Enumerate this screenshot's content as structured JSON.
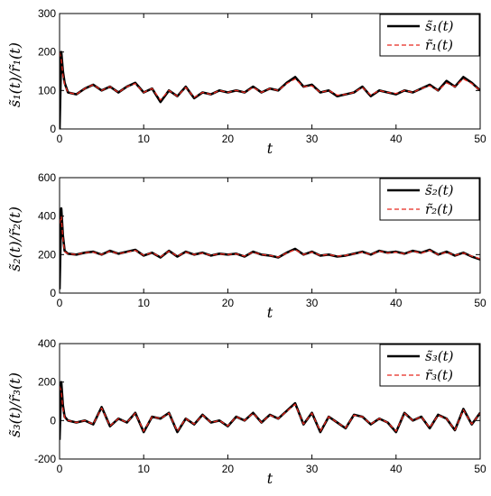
{
  "chart_data": [
    {
      "type": "line",
      "xlabel": "t",
      "ylabel": "s̃₁(t)/r̃₁(t)",
      "xlim": [
        0,
        50
      ],
      "ylim": [
        0,
        300
      ],
      "xticks": [
        "0",
        "10",
        "20",
        "30",
        "40",
        "50"
      ],
      "yticks": [
        "0",
        "100",
        "200",
        "300"
      ],
      "legend_position": "top-right",
      "grid": false,
      "series": [
        {
          "name": "s̃₁(t)",
          "color": "#000000",
          "style": "solid",
          "x": [
            0,
            0.2,
            0.4,
            0.6,
            1,
            2,
            3,
            4,
            5,
            6,
            7,
            8,
            9,
            10,
            11,
            12,
            13,
            14,
            15,
            16,
            17,
            18,
            19,
            20,
            21,
            22,
            23,
            24,
            25,
            26,
            27,
            28,
            29,
            30,
            31,
            32,
            33,
            34,
            35,
            36,
            37,
            38,
            39,
            40,
            41,
            42,
            43,
            44,
            45,
            46,
            47,
            48,
            49,
            50
          ],
          "y": [
            0,
            200,
            150,
            120,
            95,
            90,
            105,
            115,
            100,
            110,
            95,
            110,
            120,
            95,
            105,
            70,
            100,
            85,
            110,
            80,
            95,
            90,
            100,
            95,
            100,
            95,
            110,
            95,
            105,
            100,
            120,
            135,
            110,
            115,
            95,
            100,
            85,
            90,
            95,
            110,
            85,
            100,
            95,
            90,
            100,
            95,
            105,
            115,
            100,
            125,
            110,
            135,
            120,
            100
          ]
        },
        {
          "name": "r̃₁(t)",
          "color": "#e8281e",
          "style": "dashed",
          "x": [
            0,
            0.2,
            0.4,
            0.6,
            1,
            2,
            3,
            4,
            5,
            6,
            7,
            8,
            9,
            10,
            11,
            12,
            13,
            14,
            15,
            16,
            17,
            18,
            19,
            20,
            21,
            22,
            23,
            24,
            25,
            26,
            27,
            28,
            29,
            30,
            31,
            32,
            33,
            34,
            35,
            36,
            37,
            38,
            39,
            40,
            41,
            42,
            43,
            44,
            45,
            46,
            47,
            48,
            49,
            50
          ],
          "y": [
            200,
            180,
            140,
            115,
            95,
            90,
            105,
            115,
            100,
            110,
            95,
            110,
            118,
            95,
            105,
            75,
            100,
            85,
            108,
            82,
            95,
            90,
            100,
            95,
            100,
            95,
            108,
            95,
            105,
            100,
            118,
            130,
            110,
            112,
            95,
            100,
            88,
            90,
            95,
            108,
            88,
            100,
            95,
            92,
            100,
            95,
            105,
            112,
            100,
            120,
            110,
            130,
            118,
            100
          ]
        }
      ]
    },
    {
      "type": "line",
      "xlabel": "t",
      "ylabel": "s̃₂(t)/r̃₂(t)",
      "xlim": [
        0,
        50
      ],
      "ylim": [
        0,
        600
      ],
      "xticks": [
        "0",
        "10",
        "20",
        "30",
        "40",
        "50"
      ],
      "yticks": [
        "0",
        "200",
        "400",
        "600"
      ],
      "legend_position": "top-right",
      "grid": false,
      "series": [
        {
          "name": "s̃₂(t)",
          "color": "#000000",
          "style": "solid",
          "x": [
            0,
            0.2,
            0.4,
            0.6,
            1,
            2,
            3,
            4,
            5,
            6,
            7,
            8,
            9,
            10,
            11,
            12,
            13,
            14,
            15,
            16,
            17,
            18,
            19,
            20,
            21,
            22,
            23,
            24,
            25,
            26,
            27,
            28,
            29,
            30,
            31,
            32,
            33,
            34,
            35,
            36,
            37,
            38,
            39,
            40,
            41,
            42,
            43,
            44,
            45,
            46,
            47,
            48,
            49,
            50
          ],
          "y": [
            20,
            440,
            300,
            220,
            205,
            200,
            210,
            215,
            200,
            220,
            205,
            215,
            225,
            195,
            210,
            185,
            220,
            190,
            215,
            200,
            210,
            195,
            205,
            200,
            205,
            190,
            215,
            200,
            195,
            185,
            210,
            230,
            200,
            215,
            195,
            200,
            190,
            195,
            205,
            215,
            200,
            220,
            210,
            215,
            205,
            220,
            210,
            225,
            200,
            215,
            195,
            210,
            190,
            175
          ]
        },
        {
          "name": "r̃₂(t)",
          "color": "#e8281e",
          "style": "dashed",
          "x": [
            0,
            0.2,
            0.4,
            0.6,
            1,
            2,
            3,
            4,
            5,
            6,
            7,
            8,
            9,
            10,
            11,
            12,
            13,
            14,
            15,
            16,
            17,
            18,
            19,
            20,
            21,
            22,
            23,
            24,
            25,
            26,
            27,
            28,
            29,
            30,
            31,
            32,
            33,
            34,
            35,
            36,
            37,
            38,
            39,
            40,
            41,
            42,
            43,
            44,
            45,
            46,
            47,
            48,
            49,
            50
          ],
          "y": [
            360,
            400,
            280,
            215,
            205,
            200,
            210,
            213,
            200,
            218,
            205,
            213,
            222,
            197,
            210,
            188,
            218,
            192,
            213,
            200,
            208,
            196,
            204,
            200,
            204,
            192,
            213,
            200,
            196,
            187,
            208,
            226,
            200,
            213,
            196,
            200,
            192,
            196,
            204,
            213,
            200,
            218,
            208,
            213,
            204,
            218,
            208,
            222,
            200,
            213,
            196,
            208,
            192,
            178
          ]
        }
      ]
    },
    {
      "type": "line",
      "xlabel": "t",
      "ylabel": "s̃₃(t)/r̃₃(t)",
      "xlim": [
        0,
        50
      ],
      "ylim": [
        -200,
        400
      ],
      "xticks": [
        "0",
        "10",
        "20",
        "30",
        "40",
        "50"
      ],
      "yticks": [
        "-200",
        "0",
        "200",
        "400"
      ],
      "legend_position": "top-right",
      "grid": false,
      "series": [
        {
          "name": "s̃₃(t)",
          "color": "#000000",
          "style": "solid",
          "x": [
            0,
            0.2,
            0.4,
            0.6,
            1,
            2,
            3,
            4,
            5,
            6,
            7,
            8,
            9,
            10,
            11,
            12,
            13,
            14,
            15,
            16,
            17,
            18,
            19,
            20,
            21,
            22,
            23,
            24,
            25,
            26,
            27,
            28,
            29,
            30,
            31,
            32,
            33,
            34,
            35,
            36,
            37,
            38,
            39,
            40,
            41,
            42,
            43,
            44,
            45,
            46,
            47,
            48,
            49,
            50
          ],
          "y": [
            -100,
            200,
            80,
            20,
            0,
            -10,
            0,
            -20,
            70,
            -30,
            10,
            -10,
            40,
            -60,
            20,
            10,
            40,
            -60,
            10,
            -20,
            30,
            -10,
            0,
            -30,
            20,
            0,
            40,
            -10,
            30,
            10,
            50,
            90,
            -20,
            40,
            -60,
            20,
            -10,
            -40,
            30,
            20,
            -20,
            10,
            -10,
            -60,
            40,
            0,
            20,
            -40,
            30,
            10,
            -50,
            60,
            -20,
            40
          ]
        },
        {
          "name": "r̃₃(t)",
          "color": "#e8281e",
          "style": "dashed",
          "x": [
            0,
            0.2,
            0.4,
            0.6,
            1,
            2,
            3,
            4,
            5,
            6,
            7,
            8,
            9,
            10,
            11,
            12,
            13,
            14,
            15,
            16,
            17,
            18,
            19,
            20,
            21,
            22,
            23,
            24,
            25,
            26,
            27,
            28,
            29,
            30,
            31,
            32,
            33,
            34,
            35,
            36,
            37,
            38,
            39,
            40,
            41,
            42,
            43,
            44,
            45,
            46,
            47,
            48,
            49,
            50
          ],
          "y": [
            180,
            150,
            60,
            15,
            0,
            -10,
            0,
            -18,
            65,
            -28,
            10,
            -10,
            38,
            -55,
            20,
            10,
            38,
            -55,
            10,
            -18,
            28,
            -10,
            0,
            -28,
            20,
            0,
            38,
            -10,
            28,
            10,
            48,
            85,
            -18,
            38,
            -55,
            20,
            -10,
            -38,
            28,
            20,
            -18,
            10,
            -10,
            -55,
            38,
            0,
            20,
            -38,
            28,
            10,
            -48,
            55,
            -18,
            38
          ]
        }
      ]
    }
  ]
}
